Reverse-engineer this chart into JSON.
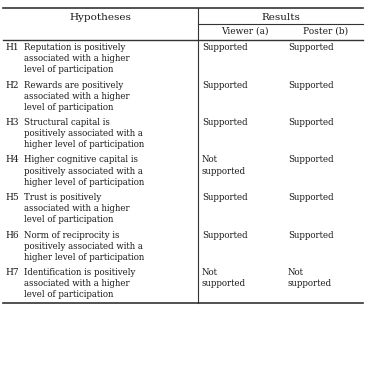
{
  "rows": [
    {
      "id": "H1",
      "hypothesis": "Reputation is positively\nassociated with a higher\nlevel of participation",
      "viewer": "Supported",
      "poster": "Supported",
      "n_lines": 3
    },
    {
      "id": "H2",
      "hypothesis": "Rewards are positively\nassociated with a higher\nlevel of participation",
      "viewer": "Supported",
      "poster": "Supported",
      "n_lines": 3
    },
    {
      "id": "H3",
      "hypothesis": "Structural capital is\npositively associated with a\nhigher level of participation",
      "viewer": "Supported",
      "poster": "Supported",
      "n_lines": 3
    },
    {
      "id": "H4",
      "hypothesis": "Higher cognitive capital is\npositively associated with a\nhigher level of participation",
      "viewer": "Not\nsupported",
      "poster": "Supported",
      "n_lines": 3
    },
    {
      "id": "H5",
      "hypothesis": "Trust is positively\nassociated with a higher\nlevel of participation",
      "viewer": "Supported",
      "poster": "Supported",
      "n_lines": 3
    },
    {
      "id": "H6",
      "hypothesis": "Norm of reciprocity is\npositively associated with a\nhigher level of participation",
      "viewer": "Supported",
      "poster": "Supported",
      "n_lines": 3
    },
    {
      "id": "H7",
      "hypothesis": "Identification is positively\nassociated with a higher\nlevel of participation",
      "viewer": "Not\nsupported",
      "poster": "Not\nsupported",
      "n_lines": 3
    }
  ],
  "bg_color": "#ffffff",
  "text_color": "#1a1a1a",
  "font_size": 6.5,
  "header_font_size": 7.5,
  "line_color": "#333333"
}
